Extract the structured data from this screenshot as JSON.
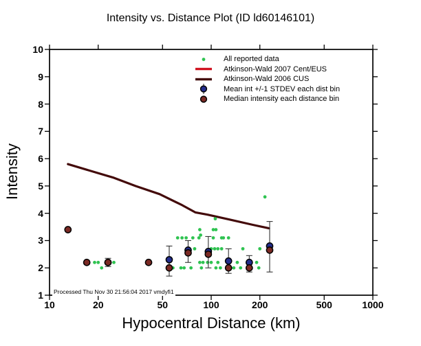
{
  "chart_data": {
    "type": "scatter",
    "title": "Intensity vs. Distance Plot (ID ld60146101)",
    "xlabel": "Hypocentral Distance (km)",
    "ylabel": "Intensity",
    "xscale": "log",
    "xlim": [
      10,
      1000
    ],
    "ylim": [
      1,
      10
    ],
    "x_ticks": [
      10,
      20,
      50,
      100,
      200,
      500,
      1000
    ],
    "y_ticks": [
      1,
      2,
      3,
      4,
      5,
      6,
      7,
      8,
      9,
      10
    ],
    "grid": false,
    "legend_position": "top-center-inside",
    "series": [
      {
        "name": "All reported data",
        "type": "scatter",
        "color": "#2fc351",
        "points": [
          [
            21,
            2.0
          ],
          [
            58,
            2.0
          ],
          [
            65,
            2.0
          ],
          [
            68,
            2.0
          ],
          [
            75,
            2.0
          ],
          [
            87,
            2.0
          ],
          [
            107,
            2.0
          ],
          [
            114,
            2.0
          ],
          [
            132,
            2.0
          ],
          [
            138,
            2.0
          ],
          [
            152,
            2.0
          ],
          [
            197,
            2.0
          ],
          [
            19,
            2.2
          ],
          [
            20,
            2.2
          ],
          [
            25,
            2.2
          ],
          [
            85,
            2.2
          ],
          [
            89,
            2.2
          ],
          [
            95,
            2.2
          ],
          [
            100,
            2.2
          ],
          [
            110,
            2.2
          ],
          [
            145,
            2.2
          ],
          [
            191,
            2.2
          ],
          [
            79,
            2.7
          ],
          [
            100,
            2.7
          ],
          [
            105,
            2.7
          ],
          [
            110,
            2.7
          ],
          [
            116,
            2.7
          ],
          [
            157,
            2.7
          ],
          [
            200,
            2.7
          ],
          [
            62,
            3.1
          ],
          [
            66,
            3.1
          ],
          [
            70,
            3.1
          ],
          [
            77,
            3.1
          ],
          [
            84,
            3.1
          ],
          [
            103,
            3.1
          ],
          [
            116,
            3.1
          ],
          [
            119,
            3.1
          ],
          [
            128,
            3.1
          ],
          [
            86,
            3.2
          ],
          [
            85,
            3.4
          ],
          [
            103,
            3.4
          ],
          [
            107,
            3.4
          ],
          [
            106,
            3.8
          ],
          [
            215,
            4.6
          ]
        ]
      },
      {
        "name": "Atkinson-Wald 2007 Cent/EUS",
        "type": "line",
        "color": "#d01320",
        "points": []
      },
      {
        "name": "Atkinson-Wald 2006 CUS",
        "type": "line",
        "color": "#430a0a",
        "points": [
          [
            13,
            5.8
          ],
          [
            18,
            5.55
          ],
          [
            25,
            5.3
          ],
          [
            34,
            5.0
          ],
          [
            48,
            4.7
          ],
          [
            66,
            4.3
          ],
          [
            80,
            4.03
          ],
          [
            95,
            3.95
          ],
          [
            130,
            3.77
          ],
          [
            180,
            3.58
          ],
          [
            228,
            3.45
          ]
        ]
      },
      {
        "name": "Mean int +/-1 STDEV each dist bin",
        "type": "scatter",
        "color": "#232d8c",
        "error_bars": true,
        "points": [
          {
            "x": 23,
            "y": 2.2,
            "lo": 2.05,
            "hi": 2.35
          },
          {
            "x": 55,
            "y": 2.3,
            "lo": 1.7,
            "hi": 2.8
          },
          {
            "x": 72,
            "y": 2.65,
            "lo": 2.2,
            "hi": 3.0
          },
          {
            "x": 96,
            "y": 2.6,
            "lo": 2.0,
            "hi": 3.15
          },
          {
            "x": 128,
            "y": 2.25,
            "lo": 1.8,
            "hi": 2.7
          },
          {
            "x": 172,
            "y": 2.2,
            "lo": 1.85,
            "hi": 2.45
          },
          {
            "x": 230,
            "y": 2.8,
            "lo": 1.85,
            "hi": 3.7
          }
        ]
      },
      {
        "name": "Median intensity each distance bin",
        "type": "scatter",
        "color": "#7b2a24",
        "points": [
          [
            13,
            3.4
          ],
          [
            17,
            2.2
          ],
          [
            23,
            2.2
          ],
          [
            41,
            2.2
          ],
          [
            55,
            2.0
          ],
          [
            72,
            2.55
          ],
          [
            96,
            2.5
          ],
          [
            128,
            2.0
          ],
          [
            172,
            2.0
          ],
          [
            230,
            2.65
          ]
        ]
      }
    ]
  },
  "legend": {
    "items": [
      {
        "marker": "green-dot",
        "label": "All reported data",
        "color": "#2fc351"
      },
      {
        "marker": "red-line",
        "label": "Atkinson-Wald 2007 Cent/EUS",
        "color": "#d01320"
      },
      {
        "marker": "darkred-line",
        "label": "Atkinson-Wald 2006 CUS",
        "color": "#430a0a"
      },
      {
        "marker": "blue-circle-errorbar",
        "label": "Mean int +/-1 STDEV each dist bin",
        "color": "#232d8c"
      },
      {
        "marker": "maroon-circle",
        "label": "Median intensity each distance bin",
        "color": "#7b2a24"
      }
    ]
  },
  "footer_note": "Processed Thu Nov 30 21:56:04 2017 vmdyfi1",
  "colors": {
    "background": "#ffffff",
    "axis": "#000000",
    "reported_green": "#2fc351",
    "aw2007_red": "#d01320",
    "aw2006_darkred": "#430a0a",
    "mean_blue": "#232d8c",
    "median_maroon": "#7b2a24",
    "errorbar_gray": "#333333"
  }
}
